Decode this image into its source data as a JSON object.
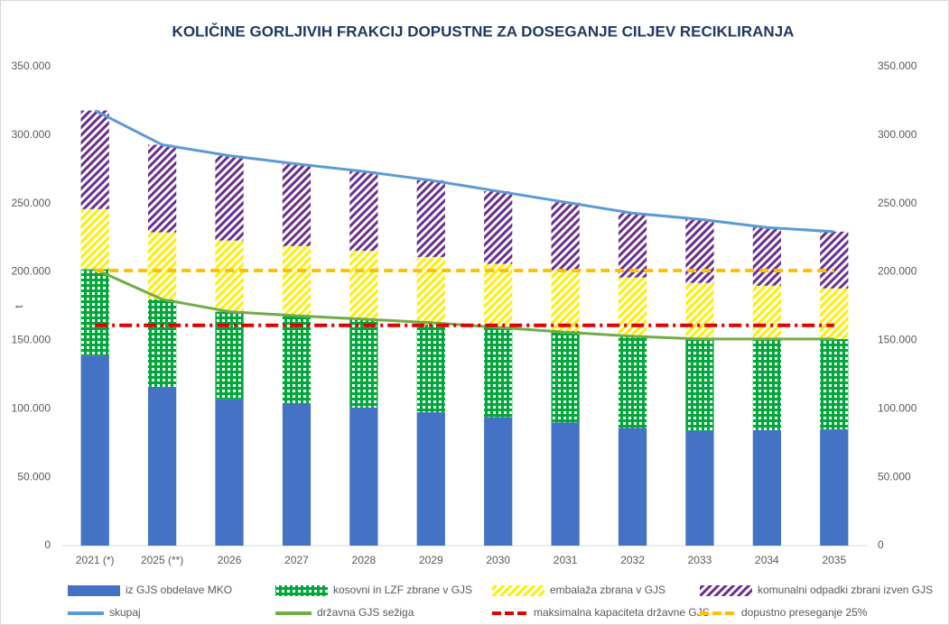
{
  "chart_data": {
    "type": "bar",
    "title": "KOLIČINE GORLJIVIH FRAKCIJ DOPUSTNE ZA DOSEGANJE CILJEV RECIKLIRANJA",
    "ylabel": "t",
    "categories": [
      "2021 (*)",
      "2025 (**)",
      "2026",
      "2027",
      "2028",
      "2029",
      "2030",
      "2031",
      "2032",
      "2033",
      "2034",
      "2035"
    ],
    "ylim": [
      0,
      350000
    ],
    "yticks": [
      0,
      {
        "value": 50000,
        "label": "50.000"
      },
      {
        "value": 100000,
        "label": "100.000"
      },
      {
        "value": 150000,
        "label": "150.000"
      },
      {
        "value": 200000,
        "label": "200.000"
      },
      {
        "value": 250000,
        "label": "250.000"
      },
      {
        "value": 300000,
        "label": "300.000"
      },
      {
        "value": 350000,
        "label": "350.000"
      }
    ],
    "y2lim": [
      0,
      350000
    ],
    "y2ticks": [
      0,
      {
        "value": 50000,
        "label": "50.000"
      },
      {
        "value": 100000,
        "label": "100.000"
      },
      {
        "value": 150000,
        "label": "150.000"
      },
      {
        "value": 200000,
        "label": "200.000"
      },
      {
        "value": 250000,
        "label": "250.000"
      },
      {
        "value": 300000,
        "label": "300.000"
      },
      {
        "value": 350000,
        "label": "350.000"
      }
    ],
    "stacked": true,
    "legend": "bottom",
    "series": [
      {
        "name": "iz GJS obdelave MKO",
        "kind": "bar",
        "color": "#4472c4",
        "pattern": "solid",
        "values": [
          139000,
          116000,
          107000,
          103500,
          101000,
          97500,
          94000,
          90000,
          86000,
          84000,
          84500,
          85000
        ]
      },
      {
        "name": "kosovni in LZF zbrane v GJS",
        "kind": "bar",
        "color": "#00a83a",
        "pattern": "checker",
        "values": [
          63000,
          64000,
          64000,
          64500,
          64500,
          64000,
          65500,
          67000,
          67500,
          67000,
          66500,
          66000
        ]
      },
      {
        "name": "embalaža zbrana v GJS",
        "kind": "bar",
        "color": "#ffee00",
        "pattern": "stripes",
        "values": [
          44000,
          49000,
          52000,
          51000,
          50000,
          49500,
          46500,
          44000,
          42500,
          41000,
          39000,
          37000
        ]
      },
      {
        "name": "komunalni odpadki zbrani izven GJS",
        "kind": "bar",
        "color": "#6a2c91",
        "pattern": "stripes",
        "values": [
          72000,
          64000,
          62000,
          60000,
          58000,
          56000,
          53000,
          50000,
          47000,
          46500,
          42500,
          41500
        ]
      },
      {
        "name": "skupaj",
        "kind": "line",
        "color": "#5b9bd5",
        "dash": "solid",
        "values": [
          318000,
          293000,
          285000,
          279000,
          273500,
          267000,
          259000,
          251000,
          243000,
          238500,
          232500,
          229500
        ]
      },
      {
        "name": "državna GJS sežiga",
        "kind": "line",
        "color": "#70ad47",
        "dash": "solid",
        "values": [
          202000,
          180000,
          171000,
          168000,
          165500,
          163000,
          159500,
          156000,
          153000,
          151000,
          151000,
          151000
        ]
      },
      {
        "name": "maksimalna kapaciteta državne GJS",
        "kind": "line",
        "color": "#e00000",
        "dash": "dashdot",
        "values": [
          161000,
          161000,
          161000,
          161000,
          161000,
          161000,
          161000,
          161000,
          161000,
          161000,
          161000,
          161000
        ]
      },
      {
        "name": "dopustno preseganje 25%",
        "kind": "line",
        "color": "#ffc000",
        "dash": "dash",
        "values": [
          201000,
          201000,
          201000,
          201000,
          201000,
          201000,
          201000,
          201000,
          201000,
          201000,
          201000,
          201000
        ]
      }
    ]
  }
}
